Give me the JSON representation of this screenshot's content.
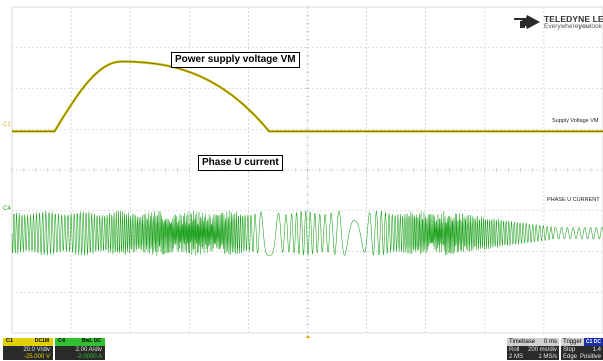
{
  "brand": {
    "name": "TELEDYNE LECROY",
    "tagline_pre": "Everywhere",
    "tagline_bold": "you",
    "tagline_post": "look"
  },
  "annotations": {
    "vm_label": "Power supply voltage VM",
    "phase_label": "Phase U current"
  },
  "trace_tags": {
    "c1": "Supply Voltage VM",
    "c4": "PHASE U CURRENT"
  },
  "channel_markers": {
    "c1": "C1",
    "c4": "C4"
  },
  "colors": {
    "c1": "#c8b800",
    "c4": "#18a018",
    "grid": "#c0c0c0",
    "c1_badge": "#e0d000",
    "c4_badge": "#30c030"
  },
  "channels": [
    {
      "id": "c1",
      "badge": "C1",
      "coupling": "DC1M",
      "scale": "20.0 V/div",
      "offset": "-25.000 V"
    },
    {
      "id": "c4",
      "badge": "C4",
      "coupling": "BwL DC",
      "scale": "2.00 A/div",
      "offset": "-2.0000 A"
    }
  ],
  "timebase": {
    "title": "Timebase",
    "delay": "0 ms",
    "mode": "Roll",
    "scale": "200 ms/div",
    "samples": "2 MS",
    "rate": "1 MS/s"
  },
  "trigger": {
    "title": "Trigger",
    "badge": "C1 DC",
    "mode": "Stop",
    "level": "1.4",
    "type": "Edge",
    "slope": "Positive"
  },
  "waveform_data": {
    "c1": {
      "name": "Supply Voltage VM",
      "baseline_div": 0.75,
      "ramp_start_div": 0.72,
      "peak_div": 1.85,
      "peak_value_div": 2.65,
      "return_div": 4.35
    },
    "c4": {
      "name": "PHASE U CURRENT",
      "center_div": 5.55,
      "loud_amplitude_div": 0.55,
      "decay_start_div": 7.3,
      "settled_amplitude_div": 0.14
    }
  }
}
